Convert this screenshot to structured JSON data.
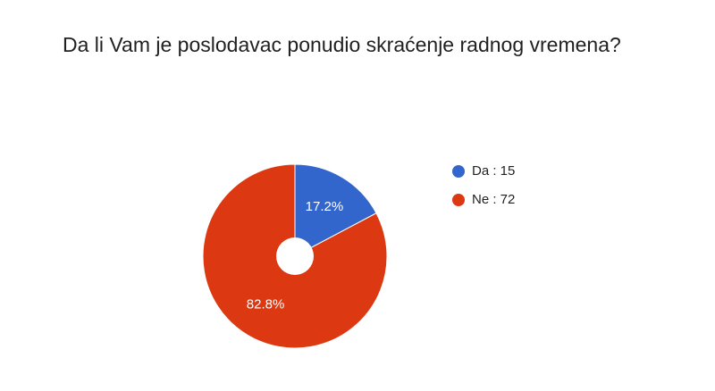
{
  "chart_data": {
    "type": "pie",
    "title": "Da li Vam je poslodavac ponudio skraćenje radnog vremena?",
    "categories": [
      "Da : 15",
      "Ne : 72"
    ],
    "values": [
      15,
      72
    ],
    "value_labels": [
      "17.2%",
      "82.8%"
    ],
    "colors": [
      "#3366cc",
      "#dc3912"
    ],
    "legend": "right"
  }
}
